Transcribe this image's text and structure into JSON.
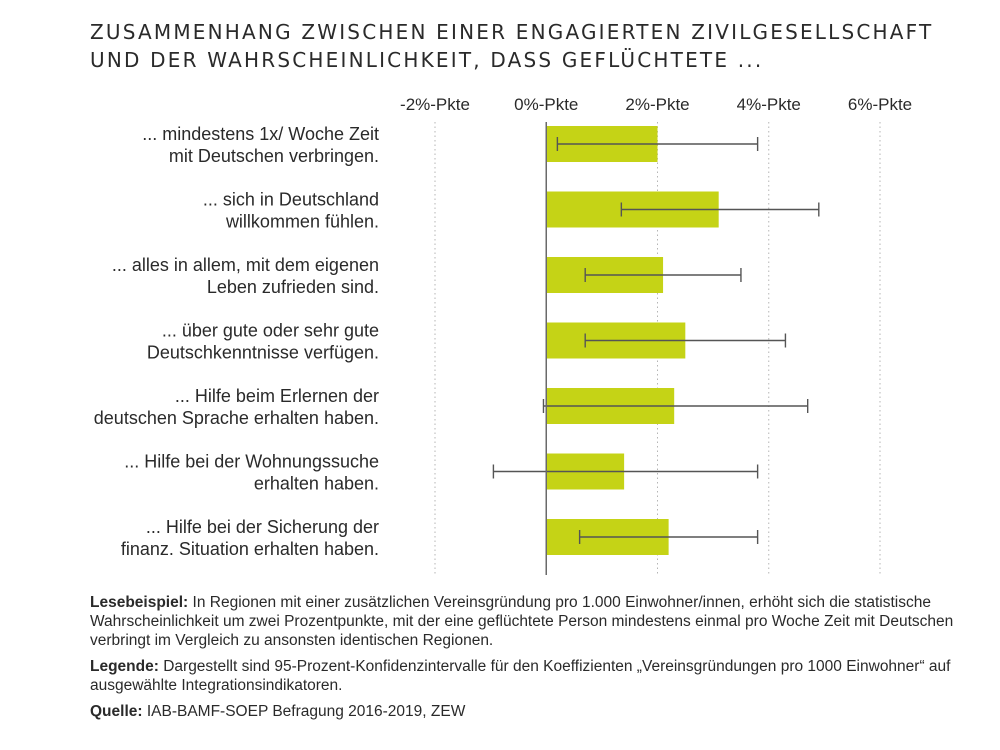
{
  "title_lines": [
    "ZUSAMMENHANG ZWISCHEN EINER ENGAGIERTEN ZIVILGESELLSCHAFT",
    "UND DER WAHRSCHEINLICHKEIT, DASS GEFLÜCHTETE ..."
  ],
  "chart_data": {
    "type": "bar",
    "orientation": "horizontal",
    "xlim": [
      -2,
      6
    ],
    "x_ticks": [
      -2,
      0,
      2,
      4,
      6
    ],
    "x_tick_labels": [
      "-2%-Pkte",
      "0%-Pkte",
      "2%-Pkte",
      "4%-Pkte",
      "6%-Pkte"
    ],
    "grid": "vertical dotted",
    "categories": [
      [
        "... mindestens 1x/ Woche Zeit",
        "mit Deutschen verbringen."
      ],
      [
        "... sich in Deutschland",
        "willkommen fühlen."
      ],
      [
        "... alles in allem, mit dem eigenen",
        "Leben zufrieden sind."
      ],
      [
        "... über gute oder sehr gute",
        "Deutschkenntnisse verfügen."
      ],
      [
        "... Hilfe beim Erlernen der",
        "deutschen Sprache erhalten haben."
      ],
      [
        "... Hilfe bei der Wohnungssuche",
        "erhalten haben."
      ],
      [
        "... Hilfe bei der Sicherung der",
        "finanz. Situation erhalten haben."
      ]
    ],
    "values": [
      2.0,
      3.1,
      2.1,
      2.5,
      2.3,
      1.4,
      2.2
    ],
    "ci_low": [
      0.2,
      1.35,
      0.7,
      0.7,
      -0.05,
      -0.95,
      0.6
    ],
    "ci_high": [
      3.8,
      4.9,
      3.5,
      4.3,
      4.7,
      3.8,
      3.8
    ],
    "bar_color": "#c5d316",
    "errorbar_color": "#555555"
  },
  "notes": [
    {
      "label": "Lesebeispiel:",
      "text": " In Regionen mit einer zusätzlichen Vereinsgründung pro 1.000 Einwohner/innen, erhöht sich die statistische Wahrscheinlichkeit um zwei Prozentpunkte, mit der eine geflüchtete Person mindestens einmal pro Woche Zeit mit Deutschen verbringt im Vergleich zu ansonsten identischen Regionen."
    },
    {
      "label": "Legende:",
      "text": " Dargestellt sind 95-Prozent-Konfidenzintervalle für den Koeffizienten „Vereinsgründungen pro 1000 Einwohner“ auf ausgewählte Integrationsindikatoren."
    },
    {
      "label": "Quelle:",
      "text": " IAB-BAMF-SOEP Befragung 2016-2019, ZEW"
    }
  ]
}
